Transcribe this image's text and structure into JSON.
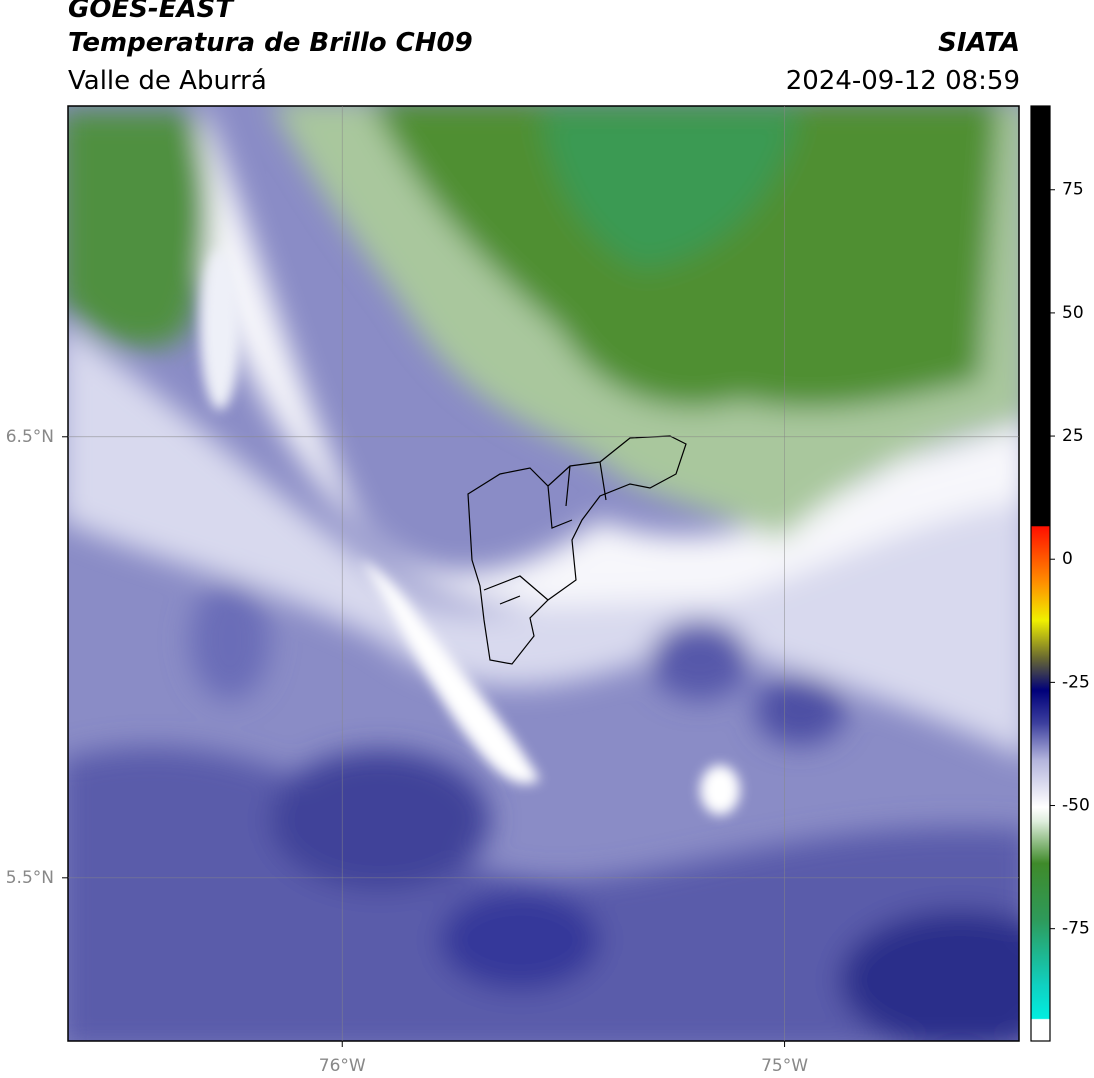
{
  "header": {
    "title": "GOES-EAST",
    "subtitle": "Temperatura de Brillo CH09",
    "region": "Valle de Aburrá",
    "source": "SIATA",
    "datetime": "2024-09-12 08:59"
  },
  "map": {
    "xlim": [
      -76.62,
      -74.47
    ],
    "ylim": [
      5.13,
      7.25
    ],
    "xticks": [
      {
        "value": -76,
        "label": "76°W"
      },
      {
        "value": -75,
        "label": "75°W"
      }
    ],
    "yticks": [
      {
        "value": 6.5,
        "label": "6.5°N"
      },
      {
        "value": 5.5,
        "label": "5.5°N"
      }
    ],
    "grid": true
  },
  "colorbar": {
    "lim": [
      -97.8,
      92
    ],
    "ticks": [
      75,
      50,
      25,
      0,
      -25,
      -50,
      -75
    ]
  }
}
